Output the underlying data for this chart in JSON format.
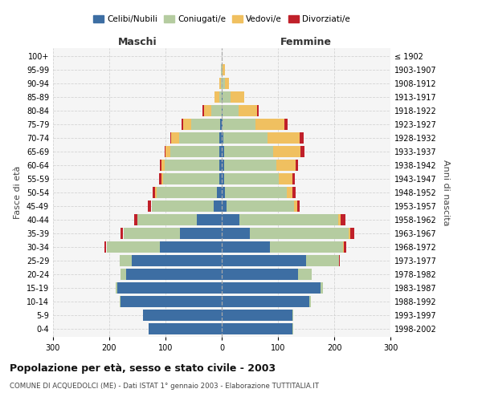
{
  "age_groups": [
    "0-4",
    "5-9",
    "10-14",
    "15-19",
    "20-24",
    "25-29",
    "30-34",
    "35-39",
    "40-44",
    "45-49",
    "50-54",
    "55-59",
    "60-64",
    "65-69",
    "70-74",
    "75-79",
    "80-84",
    "85-89",
    "90-94",
    "95-99",
    "100+"
  ],
  "birth_years": [
    "1998-2002",
    "1993-1997",
    "1988-1992",
    "1983-1987",
    "1978-1982",
    "1973-1977",
    "1968-1972",
    "1963-1967",
    "1958-1962",
    "1953-1957",
    "1948-1952",
    "1943-1947",
    "1938-1942",
    "1933-1937",
    "1928-1932",
    "1923-1927",
    "1918-1922",
    "1913-1917",
    "1908-1912",
    "1903-1907",
    "≤ 1902"
  ],
  "males": {
    "celibe": [
      130,
      140,
      180,
      185,
      170,
      160,
      110,
      75,
      45,
      15,
      8,
      4,
      4,
      4,
      4,
      3,
      0,
      0,
      0,
      0,
      0
    ],
    "coniugato": [
      0,
      0,
      2,
      4,
      10,
      22,
      95,
      100,
      105,
      110,
      108,
      100,
      98,
      88,
      72,
      52,
      18,
      5,
      2,
      1,
      0
    ],
    "vedovo": [
      0,
      0,
      0,
      0,
      0,
      0,
      0,
      0,
      0,
      1,
      2,
      3,
      5,
      8,
      14,
      14,
      14,
      8,
      2,
      0,
      0
    ],
    "divorziato": [
      0,
      0,
      0,
      0,
      0,
      0,
      3,
      5,
      5,
      5,
      5,
      4,
      3,
      2,
      2,
      2,
      2,
      0,
      0,
      0,
      0
    ]
  },
  "females": {
    "nubile": [
      125,
      125,
      155,
      175,
      135,
      150,
      85,
      50,
      32,
      9,
      6,
      4,
      4,
      4,
      3,
      2,
      2,
      2,
      0,
      0,
      0
    ],
    "coniugata": [
      2,
      2,
      4,
      5,
      25,
      58,
      130,
      175,
      175,
      120,
      110,
      98,
      93,
      88,
      78,
      58,
      28,
      14,
      5,
      2,
      0
    ],
    "vedova": [
      0,
      0,
      0,
      0,
      0,
      0,
      2,
      3,
      5,
      5,
      10,
      24,
      34,
      48,
      58,
      52,
      33,
      24,
      8,
      4,
      0
    ],
    "divorziata": [
      0,
      0,
      0,
      0,
      0,
      2,
      5,
      8,
      8,
      5,
      5,
      4,
      5,
      7,
      6,
      5,
      2,
      0,
      0,
      0,
      0
    ]
  },
  "colors": {
    "celibe_nubile": "#3d6ea3",
    "coniugato_a": "#b5cca0",
    "vedovo_a": "#f0c060",
    "divorziato_a": "#c0202a"
  },
  "title": "Popolazione per età, sesso e stato civile - 2003",
  "subtitle": "COMUNE DI ACQUEDOLCI (ME) - Dati ISTAT 1° gennaio 2003 - Elaborazione TUTTITALIA.IT",
  "ylabel_left": "Fasce di età",
  "ylabel_right": "Anni di nascita",
  "xlabel_left": "Maschi",
  "xlabel_right": "Femmine",
  "xlim": 300,
  "background_color": "#ffffff",
  "grid_color": "#cccccc"
}
